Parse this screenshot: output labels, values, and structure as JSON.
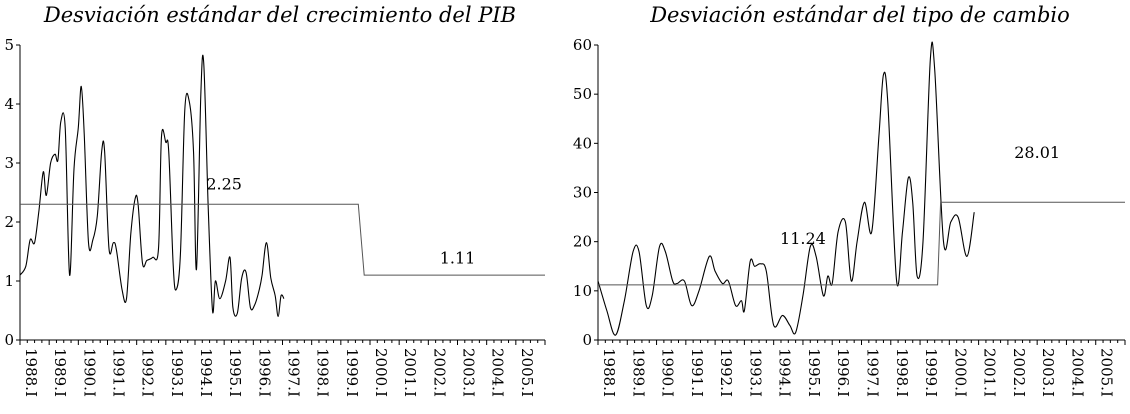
{
  "chart_data": [
    {
      "type": "line",
      "title": "Desviación estándar del crecimiento del PIB",
      "xlabel": "",
      "ylabel": "",
      "ylim": [
        0,
        5
      ],
      "yticks": [
        0,
        1,
        2,
        3,
        4,
        5
      ],
      "x_start_year": 1988,
      "categories": [
        "1988.I",
        "1989.I",
        "1990.I",
        "1991.I",
        "1992.I",
        "1993.I",
        "1994.I",
        "1995.I",
        "1996.I",
        "1997.I",
        "1998.I",
        "1999.I",
        "2000.I",
        "2001.I",
        "2002.I",
        "2003.I",
        "2004.I",
        "2005.I"
      ],
      "series": [
        {
          "name": "",
          "points": [
            [
              1988.0,
              1.1
            ],
            [
              1988.2,
              1.25
            ],
            [
              1988.35,
              1.7
            ],
            [
              1988.5,
              1.65
            ],
            [
              1988.65,
              2.2
            ],
            [
              1988.8,
              2.85
            ],
            [
              1988.9,
              2.45
            ],
            [
              1989.05,
              3.0
            ],
            [
              1989.2,
              3.15
            ],
            [
              1989.3,
              3.05
            ],
            [
              1989.4,
              3.7
            ],
            [
              1989.55,
              3.6
            ],
            [
              1989.7,
              1.1
            ],
            [
              1989.85,
              2.9
            ],
            [
              1990.0,
              3.6
            ],
            [
              1990.1,
              4.3
            ],
            [
              1990.2,
              3.5
            ],
            [
              1990.35,
              1.65
            ],
            [
              1990.5,
              1.7
            ],
            [
              1990.65,
              2.1
            ],
            [
              1990.8,
              3.2
            ],
            [
              1990.9,
              3.2
            ],
            [
              1991.05,
              1.55
            ],
            [
              1991.2,
              1.65
            ],
            [
              1991.3,
              1.55
            ],
            [
              1991.5,
              0.85
            ],
            [
              1991.65,
              0.7
            ],
            [
              1991.8,
              1.8
            ],
            [
              1991.95,
              2.4
            ],
            [
              1992.05,
              2.3
            ],
            [
              1992.2,
              1.3
            ],
            [
              1992.35,
              1.35
            ],
            [
              1992.55,
              1.4
            ],
            [
              1992.75,
              1.55
            ],
            [
              1992.85,
              3.45
            ],
            [
              1993.0,
              3.35
            ],
            [
              1993.1,
              3.2
            ],
            [
              1993.25,
              1.3
            ],
            [
              1993.35,
              0.85
            ],
            [
              1993.5,
              1.45
            ],
            [
              1993.65,
              3.9
            ],
            [
              1993.8,
              4.05
            ],
            [
              1993.95,
              3.2
            ],
            [
              1994.05,
              1.2
            ],
            [
              1994.2,
              4.15
            ],
            [
              1994.3,
              4.7
            ],
            [
              1994.45,
              2.3
            ],
            [
              1994.6,
              0.5
            ],
            [
              1994.7,
              1.0
            ],
            [
              1994.85,
              0.7
            ],
            [
              1995.05,
              1.0
            ],
            [
              1995.2,
              1.4
            ],
            [
              1995.3,
              0.55
            ],
            [
              1995.45,
              0.45
            ],
            [
              1995.6,
              1.05
            ],
            [
              1995.75,
              1.15
            ],
            [
              1995.9,
              0.55
            ],
            [
              1996.05,
              0.6
            ],
            [
              1996.2,
              0.85
            ],
            [
              1996.3,
              1.1
            ],
            [
              1996.45,
              1.65
            ],
            [
              1996.6,
              1.05
            ],
            [
              1996.75,
              0.75
            ],
            [
              1996.85,
              0.4
            ],
            [
              1996.95,
              0.75
            ],
            [
              1997.05,
              0.7
            ]
          ]
        },
        {
          "name": "",
          "type": "step",
          "points": [
            [
              1988.0,
              2.3
            ],
            [
              1999.6,
              2.3
            ],
            [
              1999.8,
              1.1
            ],
            [
              2006.0,
              1.1
            ]
          ]
        }
      ],
      "annotations": [
        {
          "text": "2.25",
          "x": 1995.0,
          "y": 2.55
        },
        {
          "text": "1.11",
          "x": 2003.0,
          "y": 1.3
        }
      ]
    },
    {
      "type": "line",
      "title": "Desviación estándar del tipo de cambio",
      "xlabel": "",
      "ylabel": "",
      "ylim": [
        0,
        60
      ],
      "yticks": [
        0,
        10,
        20,
        30,
        40,
        50,
        60
      ],
      "categories": [
        "1988.I",
        "1989.I",
        "1990.I",
        "1991.I",
        "1992.I",
        "1993.I",
        "1994.I",
        "1995.I",
        "1996.I",
        "1997.I",
        "1998.I",
        "1999.I",
        "2000.I",
        "2001.I",
        "2002.I",
        "2003.I",
        "2004.I",
        "2005.I"
      ],
      "series": [
        {
          "name": "",
          "points": [
            [
              1988.0,
              12
            ],
            [
              1988.3,
              6
            ],
            [
              1988.6,
              1
            ],
            [
              1988.9,
              8
            ],
            [
              1989.2,
              18
            ],
            [
              1989.4,
              18
            ],
            [
              1989.65,
              7
            ],
            [
              1989.85,
              9
            ],
            [
              1990.1,
              19
            ],
            [
              1990.3,
              18
            ],
            [
              1990.55,
              12
            ],
            [
              1990.7,
              11.5
            ],
            [
              1990.95,
              12
            ],
            [
              1991.2,
              7
            ],
            [
              1991.45,
              10
            ],
            [
              1991.8,
              17
            ],
            [
              1992.0,
              14
            ],
            [
              1992.25,
              11.5
            ],
            [
              1992.45,
              12
            ],
            [
              1992.7,
              7
            ],
            [
              1992.9,
              8
            ],
            [
              1993.0,
              6
            ],
            [
              1993.2,
              16
            ],
            [
              1993.35,
              15
            ],
            [
              1993.55,
              15.5
            ],
            [
              1993.75,
              14
            ],
            [
              1994.0,
              3
            ],
            [
              1994.3,
              5
            ],
            [
              1994.55,
              3
            ],
            [
              1994.75,
              1.5
            ],
            [
              1995.0,
              9
            ],
            [
              1995.25,
              19
            ],
            [
              1995.45,
              17
            ],
            [
              1995.7,
              9
            ],
            [
              1995.85,
              13
            ],
            [
              1996.0,
              11.5
            ],
            [
              1996.2,
              22
            ],
            [
              1996.45,
              24
            ],
            [
              1996.65,
              12
            ],
            [
              1996.85,
              20
            ],
            [
              1997.1,
              28
            ],
            [
              1997.35,
              22
            ],
            [
              1997.6,
              42
            ],
            [
              1997.75,
              54
            ],
            [
              1997.9,
              48
            ],
            [
              1998.2,
              12
            ],
            [
              1998.4,
              22
            ],
            [
              1998.6,
              33
            ],
            [
              1998.75,
              28
            ],
            [
              1998.9,
              13
            ],
            [
              1999.1,
              20
            ],
            [
              1999.35,
              57
            ],
            [
              1999.5,
              55
            ],
            [
              1999.8,
              20
            ],
            [
              2000.05,
              24
            ],
            [
              2000.3,
              25
            ],
            [
              2000.6,
              17
            ],
            [
              2000.85,
              26
            ]
          ]
        },
        {
          "name": "",
          "type": "step",
          "points": [
            [
              1988.0,
              11.2
            ],
            [
              1999.6,
              11.2
            ],
            [
              1999.7,
              28.0
            ],
            [
              2006.0,
              28.0
            ]
          ]
        }
      ],
      "annotations": [
        {
          "text": "11.24",
          "x": 1995.0,
          "y": 19.5
        },
        {
          "text": "28.01",
          "x": 2003.0,
          "y": 37.0
        }
      ]
    }
  ]
}
